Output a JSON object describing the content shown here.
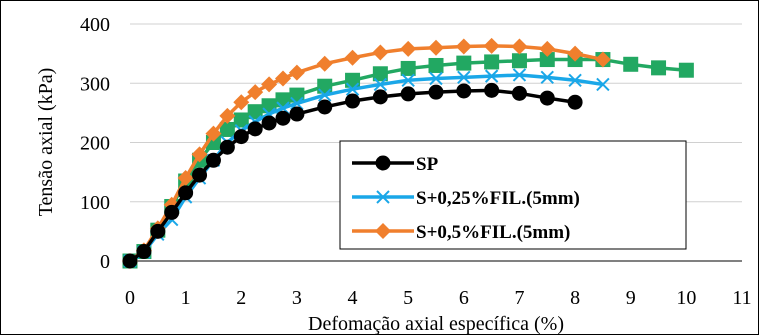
{
  "chart_data": {
    "type": "line",
    "title": "",
    "xlabel": "Defomação axial específica (%)",
    "ylabel": "Tensão axial (kPa)",
    "xlim": [
      0,
      11
    ],
    "ylim": [
      0,
      400
    ],
    "xticks": [
      "0",
      "1",
      "2",
      "3",
      "4",
      "5",
      "6",
      "7",
      "8",
      "9",
      "10",
      "11"
    ],
    "yticks": [
      "0",
      "100",
      "200",
      "300",
      "400"
    ],
    "grid": "horizontal",
    "legend_position": "center-right",
    "series": [
      {
        "name": "SP",
        "color": "#000000",
        "marker": "circle",
        "x": [
          0,
          0.25,
          0.5,
          0.75,
          1.0,
          1.25,
          1.5,
          1.75,
          2.0,
          2.25,
          2.5,
          2.75,
          3.0,
          3.5,
          4.0,
          4.5,
          5.0,
          5.5,
          6.0,
          6.5,
          7.0,
          7.5,
          8.0
        ],
        "y": [
          0,
          16,
          50,
          82,
          115,
          145,
          170,
          192,
          210,
          223,
          233,
          241,
          248,
          260,
          270,
          277,
          282,
          285,
          287,
          288,
          283,
          275,
          268
        ]
      },
      {
        "name": "S+0,25%FIL.(5mm)",
        "color": "#1aa7e8",
        "marker": "x",
        "x": [
          0,
          0.25,
          0.5,
          0.75,
          1.0,
          1.25,
          1.5,
          1.75,
          2.0,
          2.25,
          2.5,
          2.75,
          3.0,
          3.5,
          4.0,
          4.5,
          5.0,
          5.5,
          6.0,
          6.5,
          7.0,
          7.5,
          8.0,
          8.5
        ],
        "y": [
          0,
          15,
          45,
          70,
          108,
          140,
          170,
          200,
          220,
          235,
          248,
          258,
          266,
          280,
          290,
          298,
          305,
          308,
          310,
          312,
          314,
          310,
          305,
          298
        ]
      },
      {
        "name": "S+0,5%FIL.(5mm)",
        "color": "#f07f2d",
        "marker": "diamond",
        "x": [
          0,
          0.25,
          0.5,
          0.75,
          1.0,
          1.25,
          1.5,
          1.75,
          2.0,
          2.25,
          2.5,
          2.75,
          3.0,
          3.5,
          4.0,
          4.5,
          5.0,
          5.5,
          6.0,
          6.5,
          7.0,
          7.5,
          8.0,
          8.5
        ],
        "y": [
          0,
          18,
          55,
          95,
          140,
          180,
          215,
          245,
          268,
          285,
          298,
          308,
          318,
          333,
          343,
          352,
          358,
          360,
          362,
          363,
          362,
          358,
          350,
          340
        ]
      },
      {
        "name": "",
        "color": "#22a862",
        "marker": "square",
        "x": [
          0,
          0.25,
          0.5,
          0.75,
          1.0,
          1.25,
          1.5,
          1.75,
          2.0,
          2.25,
          2.5,
          2.75,
          3.0,
          3.5,
          4.0,
          4.5,
          5.0,
          5.5,
          6.0,
          6.5,
          7.0,
          7.5,
          8.0,
          8.5,
          9.0,
          9.5,
          10.0
        ],
        "y": [
          0,
          16,
          52,
          92,
          135,
          170,
          200,
          222,
          238,
          252,
          262,
          272,
          280,
          295,
          305,
          316,
          325,
          330,
          334,
          336,
          338,
          340,
          340,
          340,
          332,
          326,
          322
        ]
      }
    ]
  }
}
